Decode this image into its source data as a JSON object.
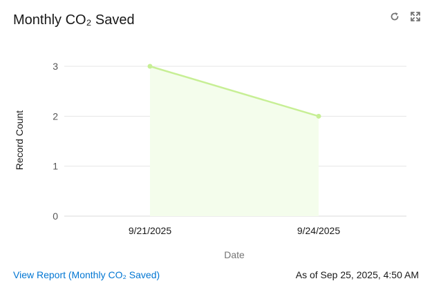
{
  "card": {
    "title": "Monthly CO₂ Saved",
    "refresh_icon": "refresh-icon",
    "expand_icon": "expand-icon"
  },
  "chart_data": {
    "type": "area",
    "title": "",
    "xlabel": "Date",
    "ylabel": "Record Count",
    "categories": [
      "9/21/2025",
      "9/24/2025"
    ],
    "values": [
      3,
      2
    ],
    "yticks": [
      "0",
      "1",
      "2",
      "3"
    ],
    "ylim": [
      0,
      3
    ],
    "grid": true,
    "legend": "none",
    "line_color": "#c7ef95",
    "fill_color": "#f4fdec"
  },
  "footer": {
    "link_text": "View Report (Monthly CO₂ Saved)",
    "timestamp": "As of Sep 25, 2025, 4:50 AM"
  },
  "colors": {
    "link": "#0176d3",
    "text": "#181818",
    "grid": "#e5e5e5"
  }
}
